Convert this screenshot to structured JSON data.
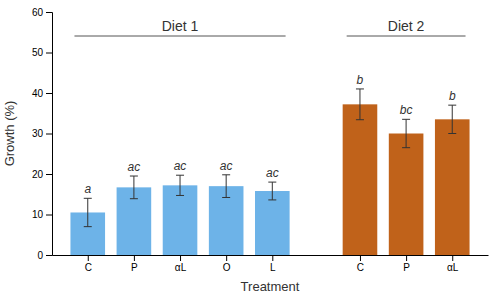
{
  "chart_data": {
    "type": "bar",
    "categories": [
      "C",
      "P",
      "αL",
      "O",
      "L",
      "C",
      "P",
      "αL"
    ],
    "values": [
      10.5,
      16.7,
      17.2,
      17.0,
      15.8,
      37.2,
      30.0,
      33.5
    ],
    "errors": [
      3.5,
      2.8,
      2.5,
      2.8,
      2.2,
      3.8,
      3.5,
      3.5
    ],
    "annotations": [
      "a",
      "ac",
      "ac",
      "ac",
      "ac",
      "b",
      "bc",
      "b"
    ],
    "groups": [
      "Diet 1",
      "Diet 1",
      "Diet 1",
      "Diet 1",
      "Diet 1",
      "Diet 2",
      "Diet 2",
      "Diet 2"
    ],
    "colors": [
      "#6db3e8",
      "#6db3e8",
      "#6db3e8",
      "#6db3e8",
      "#6db3e8",
      "#c0621a",
      "#c0621a",
      "#c0621a"
    ],
    "xlabel": "Treatment",
    "ylabel": "Growth (%)",
    "ylim": [
      0,
      60
    ],
    "yticks": [
      0,
      10,
      20,
      30,
      40,
      50,
      60
    ],
    "grid": false
  }
}
